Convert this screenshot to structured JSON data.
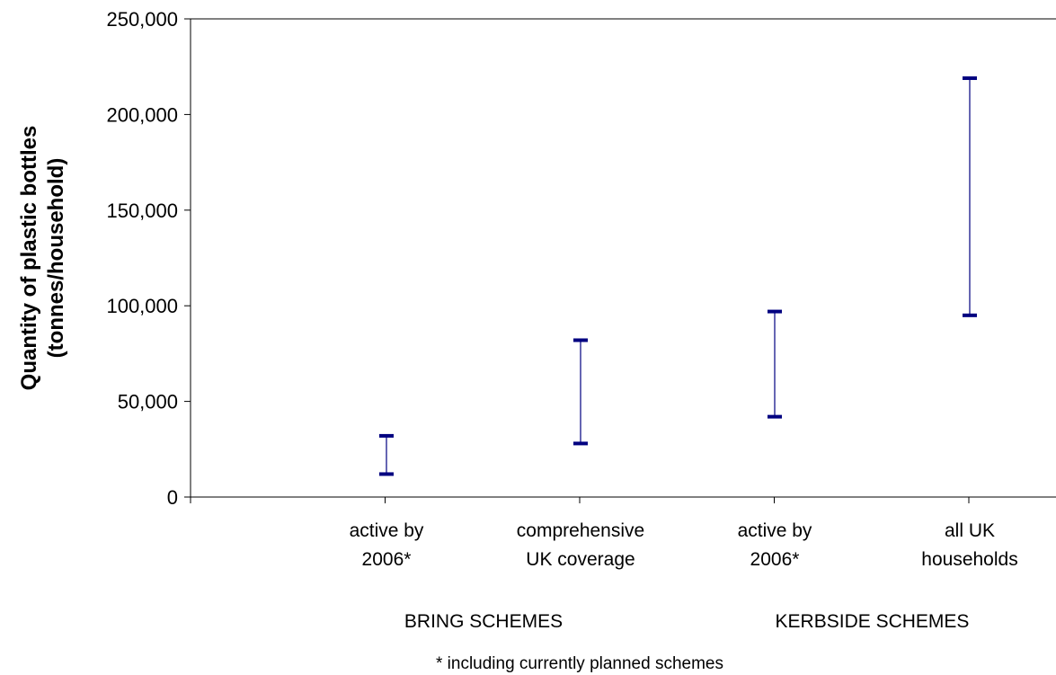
{
  "chart_data": {
    "type": "range",
    "title": "",
    "xlabel": "",
    "ylabel_lines": [
      "Quantity of plastic bottles",
      "(tonnes/household)"
    ],
    "ylim": [
      0,
      250000
    ],
    "yticks": [
      "0",
      "50,000",
      "100,000",
      "150,000",
      "200,000",
      "250,000"
    ],
    "ytick_values": [
      0,
      50000,
      100000,
      150000,
      200000,
      250000
    ],
    "grid": false,
    "legend": "none",
    "color": "#000080",
    "categories": [
      {
        "lines": [
          "active by",
          "2006*"
        ],
        "low": 12000,
        "high": 32000
      },
      {
        "lines": [
          "comprehensive",
          "UK coverage"
        ],
        "low": 28000,
        "high": 82000
      },
      {
        "lines": [
          "active by",
          "2006*"
        ],
        "low": 42000,
        "high": 97000
      },
      {
        "lines": [
          "all UK",
          "households"
        ],
        "low": 95000,
        "high": 219000
      }
    ],
    "groups": [
      {
        "label": "BRING SCHEMES",
        "from": 0,
        "to": 1
      },
      {
        "label": "KERBSIDE SCHEMES",
        "from": 2,
        "to": 3
      }
    ],
    "footnote": "* including currently planned schemes"
  }
}
